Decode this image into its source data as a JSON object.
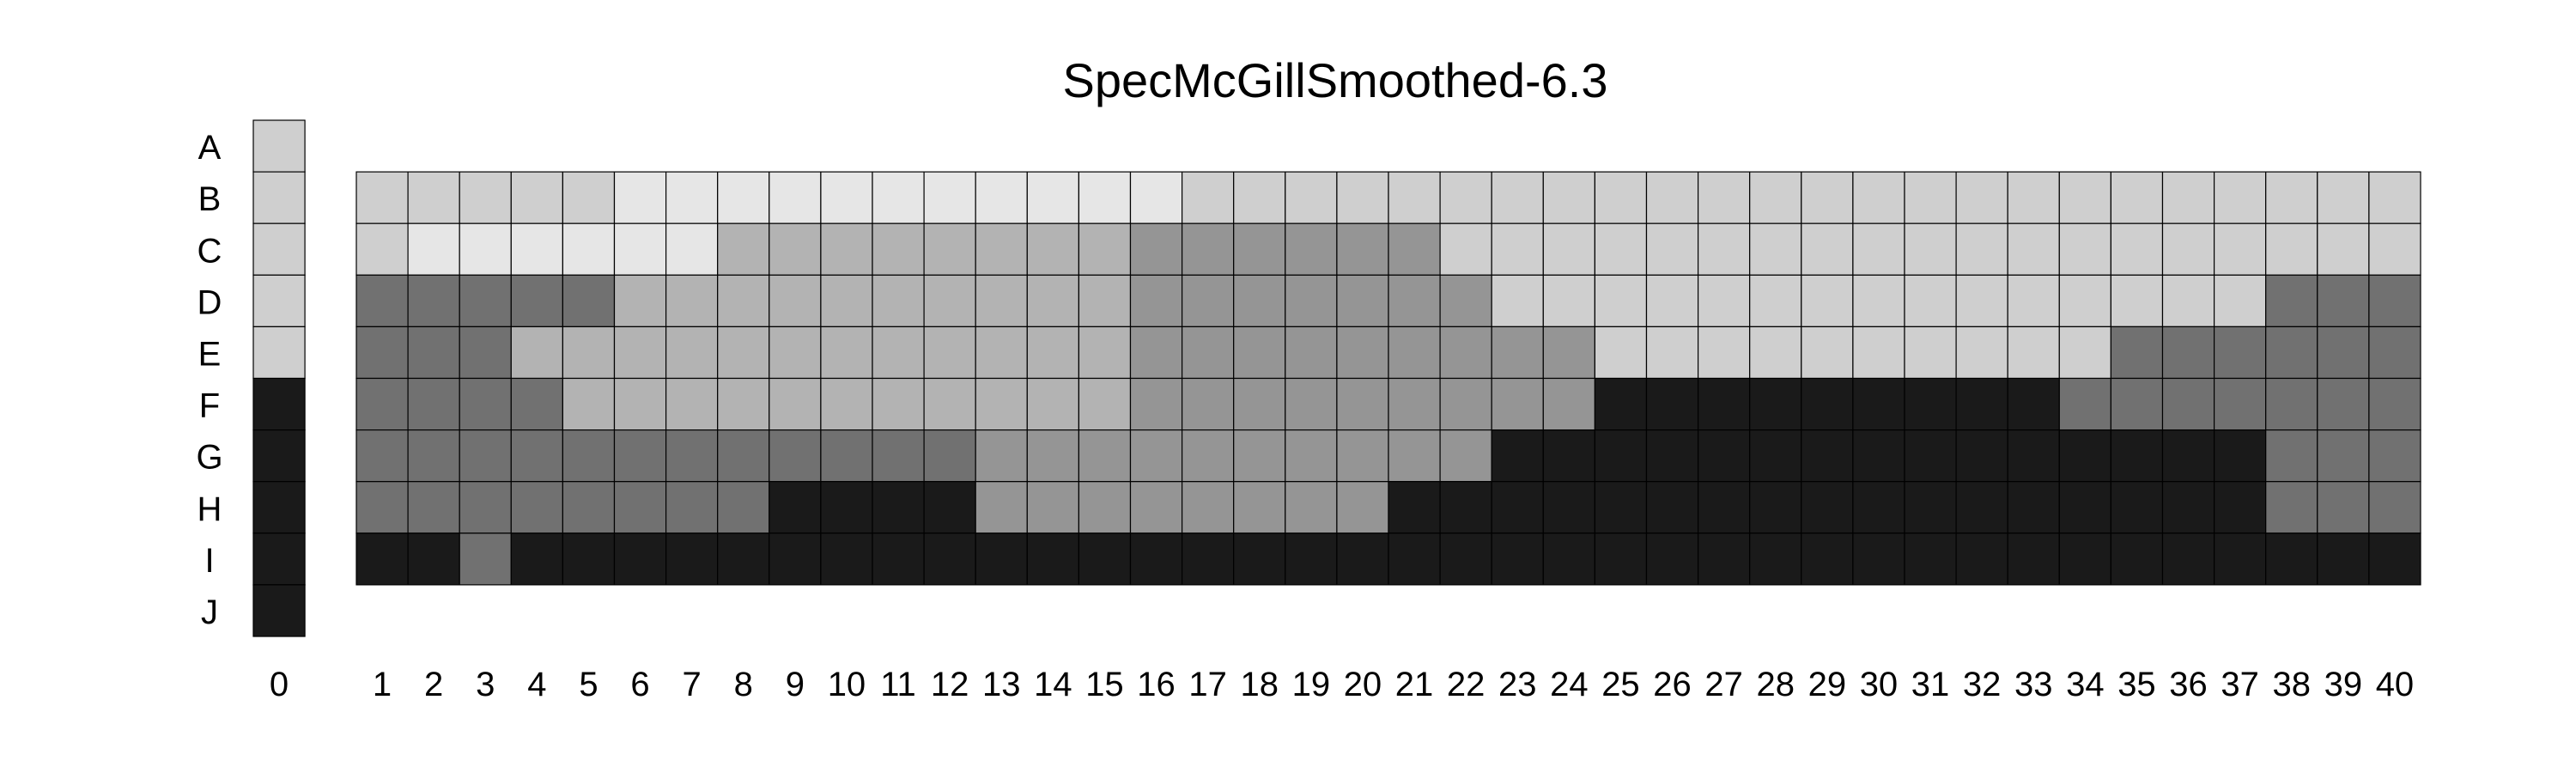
{
  "chart_data": {
    "type": "heatmap",
    "title": "SpecMcGillSmoothed-6.3",
    "row_labels": [
      "A",
      "B",
      "C",
      "D",
      "E",
      "F",
      "G",
      "H",
      "I",
      "J"
    ],
    "column_labels": [
      "1",
      "2",
      "3",
      "4",
      "5",
      "6",
      "7",
      "8",
      "9",
      "10",
      "11",
      "12",
      "13",
      "14",
      "15",
      "16",
      "17",
      "18",
      "19",
      "20",
      "21",
      "22",
      "23",
      "24",
      "25",
      "26",
      "27",
      "28",
      "29",
      "30",
      "31",
      "32",
      "33",
      "34",
      "35",
      "36",
      "37",
      "38",
      "39",
      "40"
    ],
    "key_column_label": "0",
    "palette": {
      "0": "#1a1a1a",
      "1": "#717171",
      "2": "#959595",
      "3": "#b3b3b3",
      "4": "#cfcfcf",
      "5": "#e6e6e6"
    },
    "key_column": [
      4,
      4,
      4,
      4,
      4,
      0,
      0,
      0,
      0,
      0
    ],
    "grid_rows": [
      "B",
      "C",
      "D",
      "E",
      "F",
      "G",
      "H",
      "I"
    ],
    "grid": [
      [
        4,
        4,
        4,
        4,
        4,
        5,
        5,
        5,
        5,
        5,
        5,
        5,
        5,
        5,
        5,
        5,
        4,
        4,
        4,
        4,
        4,
        4,
        4,
        4,
        4,
        4,
        4,
        4,
        4,
        4,
        4,
        4,
        4,
        4,
        4,
        4,
        4,
        4,
        4,
        4
      ],
      [
        4,
        5,
        5,
        5,
        5,
        5,
        5,
        3,
        3,
        3,
        3,
        3,
        3,
        3,
        3,
        2,
        2,
        2,
        2,
        2,
        2,
        4,
        4,
        4,
        4,
        4,
        4,
        4,
        4,
        4,
        4,
        4,
        4,
        4,
        4,
        4,
        4,
        4,
        4,
        4
      ],
      [
        1,
        1,
        1,
        1,
        1,
        3,
        3,
        3,
        3,
        3,
        3,
        3,
        3,
        3,
        3,
        2,
        2,
        2,
        2,
        2,
        2,
        2,
        4,
        4,
        4,
        4,
        4,
        4,
        4,
        4,
        4,
        4,
        4,
        4,
        4,
        4,
        4,
        1,
        1,
        1
      ],
      [
        1,
        1,
        1,
        3,
        3,
        3,
        3,
        3,
        3,
        3,
        3,
        3,
        3,
        3,
        3,
        2,
        2,
        2,
        2,
        2,
        2,
        2,
        2,
        2,
        4,
        4,
        4,
        4,
        4,
        4,
        4,
        4,
        4,
        4,
        1,
        1,
        1,
        1,
        1,
        1
      ],
      [
        1,
        1,
        1,
        1,
        3,
        3,
        3,
        3,
        3,
        3,
        3,
        3,
        3,
        3,
        3,
        2,
        2,
        2,
        2,
        2,
        2,
        2,
        2,
        2,
        0,
        0,
        0,
        0,
        0,
        0,
        0,
        0,
        0,
        1,
        1,
        1,
        1,
        1,
        1,
        1
      ],
      [
        1,
        1,
        1,
        1,
        1,
        1,
        1,
        1,
        1,
        1,
        1,
        1,
        2,
        2,
        2,
        2,
        2,
        2,
        2,
        2,
        2,
        2,
        0,
        0,
        0,
        0,
        0,
        0,
        0,
        0,
        0,
        0,
        0,
        0,
        0,
        0,
        0,
        1,
        1,
        1
      ],
      [
        1,
        1,
        1,
        1,
        1,
        1,
        1,
        1,
        0,
        0,
        0,
        0,
        2,
        2,
        2,
        2,
        2,
        2,
        2,
        2,
        0,
        0,
        0,
        0,
        0,
        0,
        0,
        0,
        0,
        0,
        0,
        0,
        0,
        0,
        0,
        0,
        0,
        1,
        1,
        1
      ],
      [
        0,
        0,
        1,
        0,
        0,
        0,
        0,
        0,
        0,
        0,
        0,
        0,
        0,
        0,
        0,
        0,
        0,
        0,
        0,
        0,
        0,
        0,
        0,
        0,
        0,
        0,
        0,
        0,
        0,
        0,
        0,
        0,
        0,
        0,
        0,
        0,
        0,
        0,
        0,
        0
      ]
    ]
  }
}
